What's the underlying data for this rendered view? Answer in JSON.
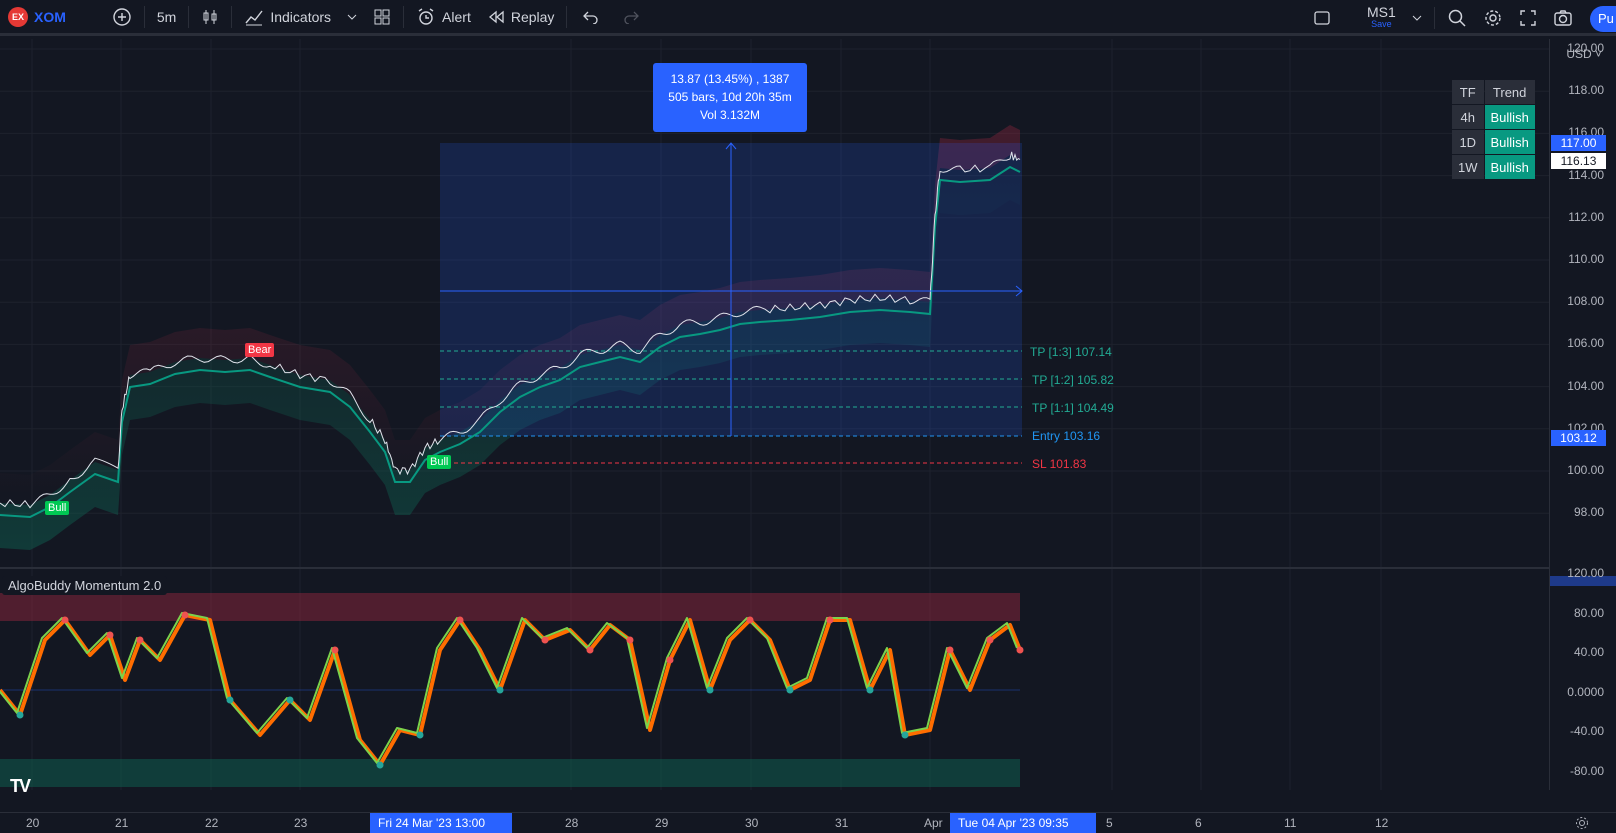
{
  "toolbar": {
    "logo_text": "EX",
    "symbol": "XOM",
    "interval": "5m",
    "indicators_label": "Indicators",
    "alert_label": "Alert",
    "replay_label": "Replay",
    "layout_name": "MS1",
    "layout_sub": "Save",
    "publish_label": "Pu"
  },
  "price_axis": {
    "currency": "USD",
    "main_ticks": [
      "120.00",
      "118.00",
      "116.00",
      "114.00",
      "112.00",
      "110.00",
      "108.00",
      "106.00",
      "104.00",
      "102.00",
      "100.00",
      "98.00"
    ],
    "tag_top": "117.00",
    "tag_current": "116.13",
    "tag_entry": "103.12",
    "osc_ticks": [
      "120.00",
      "80.00",
      "40.00",
      "0.0000",
      "-40.00",
      "-80.00"
    ]
  },
  "time_axis": {
    "labels": [
      "20",
      "21",
      "22",
      "23",
      "28",
      "29",
      "30",
      "31",
      "Apr",
      "5",
      "6",
      "11",
      "12"
    ],
    "start_tag": "Fri 24 Mar '23   13:00",
    "end_tag": "Tue 04 Apr '23   09:35"
  },
  "measure_tooltip": {
    "line1": "13.87 (13.45%) , 1387",
    "line2": "505 bars, 10d 20h 35m",
    "line3": "Vol 3.132M"
  },
  "trend_table": {
    "header": [
      "TF",
      "Trend"
    ],
    "rows": [
      {
        "tf": "4h",
        "trend": "Bullish"
      },
      {
        "tf": "1D",
        "trend": "Bullish"
      },
      {
        "tf": "1W",
        "trend": "Bullish"
      }
    ]
  },
  "levels": {
    "tp3": "TP [1:3] 107.14",
    "tp2": "TP [1:2] 105.82",
    "tp1": "TP [1:1] 104.49",
    "entry": "Entry 103.16",
    "sl": "SL 101.83"
  },
  "signals": {
    "bear": "Bear",
    "bull1": "Bull",
    "bull2": "Bull"
  },
  "indicator": {
    "title": "AlgoBuddy Momentum 2.0"
  },
  "colors": {
    "accent": "#2962ff",
    "bull": "#089981",
    "bear": "#f23645",
    "tp": "#22ab94",
    "entry": "#2196f3",
    "sl": "#f23645"
  }
}
